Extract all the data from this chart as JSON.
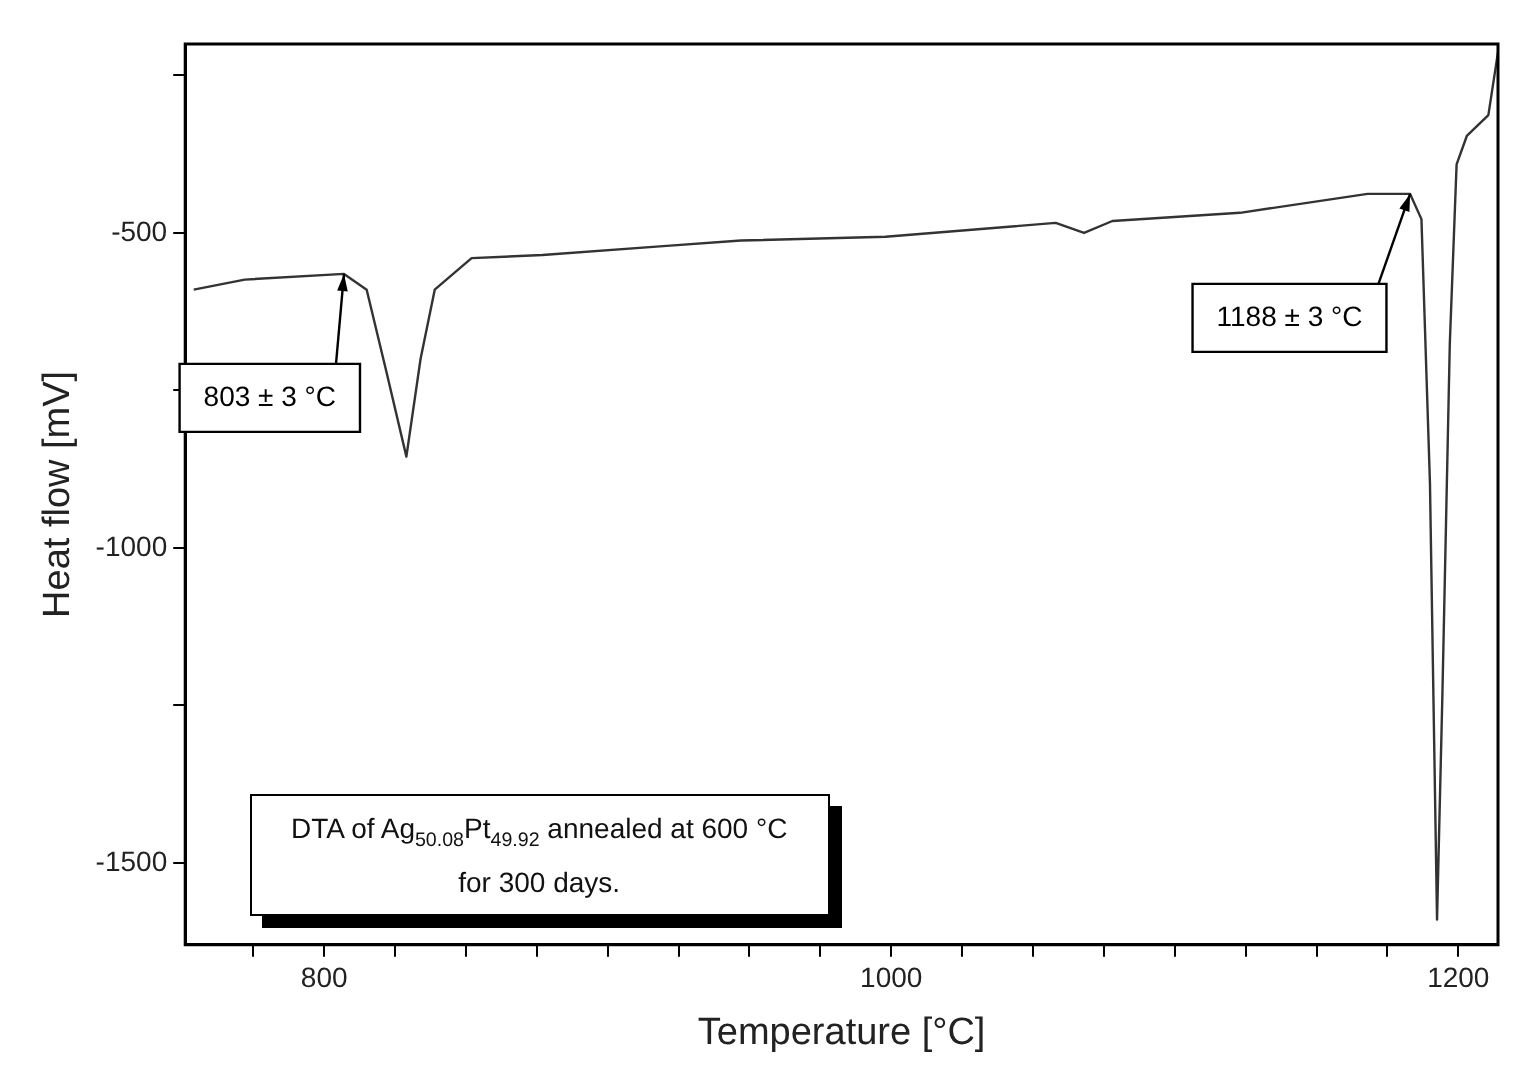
{
  "chart_data": {
    "type": "line",
    "xlabel": "Temperature [°C]",
    "ylabel": "Heat flow [mV]",
    "xlim": [
      751,
      1214
    ],
    "ylim": [
      -1630,
      -200
    ],
    "xticks": [
      {
        "value": 775,
        "label": null
      },
      800,
      {
        "value": 825,
        "label": null
      },
      {
        "value": 850,
        "label": null
      },
      {
        "value": 875,
        "label": null
      },
      {
        "value": 900,
        "label": null
      },
      {
        "value": 925,
        "label": null
      },
      {
        "value": 950,
        "label": null
      },
      {
        "value": 975,
        "label": null
      },
      1000,
      {
        "value": 1025,
        "label": null
      },
      {
        "value": 1050,
        "label": null
      },
      {
        "value": 1075,
        "label": null
      },
      {
        "value": 1100,
        "label": null
      },
      {
        "value": 1125,
        "label": null
      },
      {
        "value": 1150,
        "label": null
      },
      {
        "value": 1175,
        "label": null
      },
      1200
    ],
    "yticks": [
      -1500,
      {
        "value": -1250,
        "label": null
      },
      -1000,
      {
        "value": -750,
        "label": null
      },
      -500,
      {
        "value": -250,
        "label": null
      }
    ],
    "grid": false,
    "legend": false,
    "marker": "none",
    "line_style": "solid",
    "series": [
      {
        "color": "#333333",
        "x": [
          754,
          772,
          807,
          815,
          822,
          829,
          834,
          839,
          852,
          877,
          922,
          947,
          998,
          1058,
          1068,
          1078,
          1123,
          1168,
          1183,
          1187,
          1190,
          1192.5,
          1194.4,
          1197,
          1199.4,
          1203,
          1210.6,
          1214
        ],
        "values": [
          -590,
          -574,
          -565,
          -590,
          -721,
          -855,
          -700,
          -590,
          -540,
          -535,
          -520,
          -512,
          -506,
          -484,
          -500,
          -481,
          -468,
          -438,
          -438,
          -478,
          -897,
          -1590,
          -1231,
          -676,
          -391,
          -346,
          -313,
          -213
        ]
      }
    ],
    "annotations": [
      {
        "text": "803 ± 3 °C",
        "x": 807,
        "y": -565
      },
      {
        "text": "1188 ± 3 °C",
        "x": 1183,
        "y": -438
      },
      "DTA of Ag$_{50.08}$Pt$_{49.92}$ annealed at 600 °C for 300 days."
    ]
  }
}
